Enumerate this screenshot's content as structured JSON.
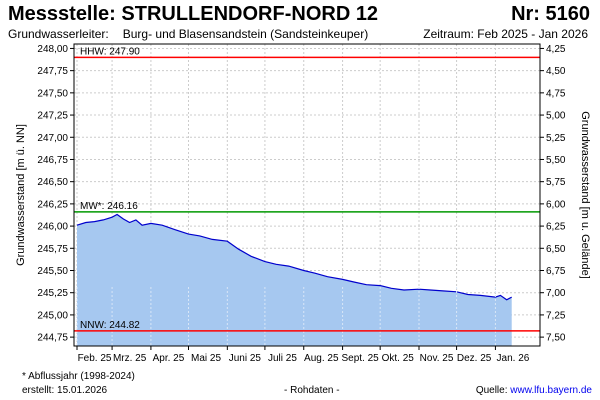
{
  "header": {
    "title": "Messstelle: STRULLENDORF-NORD 12",
    "number": "Nr: 5160",
    "aquifer_label": "Grundwasserleiter:",
    "aquifer_value": "Burg- und Blasensandstein (Sandsteinkeuper)",
    "period": "Zeitraum: Feb 2025 - Jan 2026"
  },
  "footer": {
    "note": "* Abflussjahr (1998-2024)",
    "created_label": "erstellt:",
    "created_value": "15.01.2026",
    "raw": "- Rohdaten -",
    "source_label": "Quelle:",
    "source_link": "www.lfu.bayern.de"
  },
  "colors": {
    "fill": "#a6c8f0",
    "line": "#0000cc",
    "hhw": "#ff0000",
    "mw": "#009900",
    "nnw": "#ff0000",
    "grid": "#cccccc"
  },
  "chart_data": {
    "type": "area",
    "title": "",
    "ylabel": "Grundwasserstand [m ü. NN]",
    "ylabel_right": "Grundwasserstand [m u. Gelände]",
    "ylim": [
      244.65,
      248.05
    ],
    "yticks": [
      "244,75",
      "245,00",
      "245,25",
      "245,50",
      "245,75",
      "246,00",
      "246,25",
      "246,50",
      "246,75",
      "247,00",
      "247,25",
      "247,50",
      "247,75",
      "248,00"
    ],
    "yticks_right": [
      "4,25",
      "4,50",
      "4,75",
      "5,00",
      "5,25",
      "5,50",
      "5,75",
      "6,00",
      "6,25",
      "6,50",
      "6,75",
      "7,00",
      "7,25",
      "7,50"
    ],
    "x_months": [
      "Feb. 25",
      "Mrz. 25",
      "Apr. 25",
      "Mai 25",
      "Juni 25",
      "Juli 25",
      "Aug. 25",
      "Sept. 25",
      "Okt. 25",
      "Nov. 25",
      "Dez. 25",
      "Jan. 26"
    ],
    "x_range": [
      "2025-02-01",
      "2026-01-31"
    ],
    "grid": true,
    "reference_lines": [
      {
        "name": "HHW",
        "label": "HHW: 247.90",
        "value": 247.9
      },
      {
        "name": "MW",
        "label": "MW*: 246.16",
        "value": 246.16
      },
      {
        "name": "NNW",
        "label": "NNW: 244.82",
        "value": 244.82
      }
    ],
    "series": [
      {
        "x": [
          "2025-02-01",
          "2025-02-08",
          "2025-02-15",
          "2025-02-22",
          "2025-03-01",
          "2025-03-05",
          "2025-03-10",
          "2025-03-15",
          "2025-03-20",
          "2025-03-25",
          "2025-04-01",
          "2025-04-10",
          "2025-04-20",
          "2025-05-01",
          "2025-05-10",
          "2025-05-20",
          "2025-06-01",
          "2025-06-10",
          "2025-06-20",
          "2025-07-01",
          "2025-07-10",
          "2025-07-20",
          "2025-08-01",
          "2025-08-10",
          "2025-08-20",
          "2025-09-01",
          "2025-09-10",
          "2025-09-20",
          "2025-10-01",
          "2025-10-10",
          "2025-10-20",
          "2025-11-01",
          "2025-11-10",
          "2025-11-20",
          "2025-12-01",
          "2025-12-10",
          "2025-12-20",
          "2026-01-01",
          "2026-01-05",
          "2026-01-10",
          "2026-01-14"
        ],
        "y": [
          246.01,
          246.04,
          246.05,
          246.07,
          246.1,
          246.13,
          246.08,
          246.04,
          246.07,
          246.01,
          246.03,
          246.01,
          245.96,
          245.91,
          245.89,
          245.85,
          245.83,
          245.74,
          245.66,
          245.6,
          245.57,
          245.55,
          245.5,
          245.47,
          245.43,
          245.4,
          245.37,
          245.34,
          245.33,
          245.3,
          245.28,
          245.29,
          245.28,
          245.27,
          245.26,
          245.23,
          245.22,
          245.2,
          245.22,
          245.17,
          245.2
        ]
      }
    ]
  }
}
